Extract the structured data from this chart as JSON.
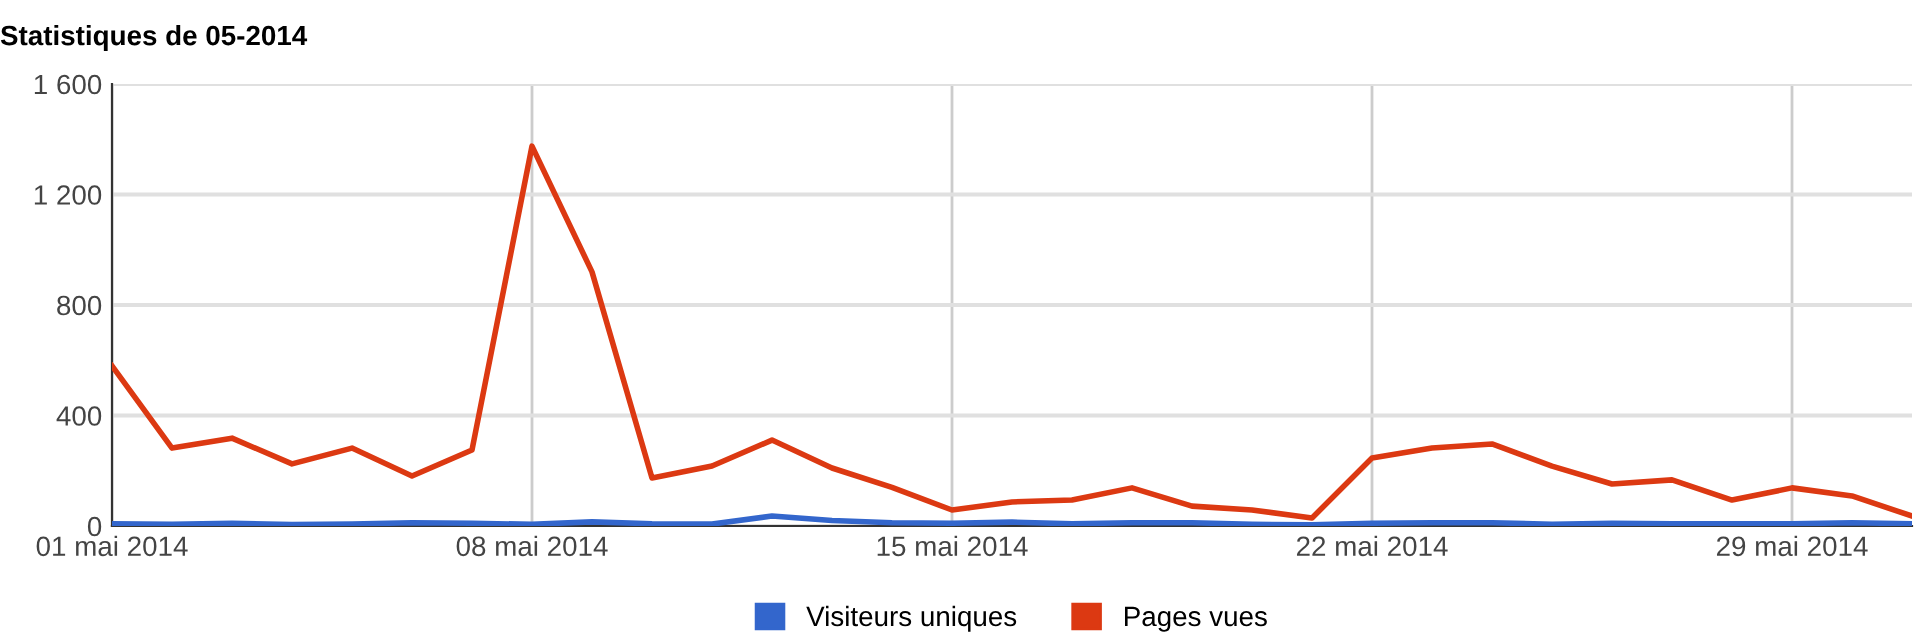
{
  "chart_data": {
    "type": "line",
    "title": "Statistiques de 05-2014",
    "x": [
      "2014-05-01",
      "2014-05-02",
      "2014-05-03",
      "2014-05-04",
      "2014-05-05",
      "2014-05-06",
      "2014-05-07",
      "2014-05-08",
      "2014-05-09",
      "2014-05-10",
      "2014-05-11",
      "2014-05-12",
      "2014-05-13",
      "2014-05-14",
      "2014-05-15",
      "2014-05-16",
      "2014-05-17",
      "2014-05-18",
      "2014-05-19",
      "2014-05-20",
      "2014-05-21",
      "2014-05-22",
      "2014-05-23",
      "2014-05-24",
      "2014-05-25",
      "2014-05-26",
      "2014-05-27",
      "2014-05-28",
      "2014-05-29",
      "2014-05-30",
      "2014-05-31"
    ],
    "series": [
      {
        "name": "Visiteurs uniques",
        "color": "#3366cc",
        "values": [
          8,
          6,
          10,
          5,
          7,
          12,
          10,
          6,
          15,
          8,
          7,
          36,
          20,
          12,
          10,
          14,
          8,
          12,
          12,
          6,
          4,
          10,
          12,
          12,
          6,
          10,
          8,
          8,
          8,
          12,
          8
        ]
      },
      {
        "name": "Pages vues",
        "color": "#dc3912",
        "values": [
          580,
          282,
          318,
          225,
          282,
          181,
          275,
          1375,
          920,
          174,
          217,
          311,
          210,
          140,
          58,
          87,
          94,
          138,
          72,
          58,
          29,
          246,
          282,
          297,
          217,
          152,
          167,
          94,
          138,
          109,
          36
        ]
      }
    ],
    "xlim": [
      "2014-05-01",
      "2014-05-31"
    ],
    "xticks": [
      {
        "value": "2014-05-01",
        "label": "01 mai 2014"
      },
      {
        "value": "2014-05-08",
        "label": "08 mai 2014"
      },
      {
        "value": "2014-05-15",
        "label": "15 mai 2014"
      },
      {
        "value": "2014-05-22",
        "label": "22 mai 2014"
      },
      {
        "value": "2014-05-29",
        "label": "29 mai 2014"
      }
    ],
    "ylim": [
      0,
      1600
    ],
    "yticks": [
      0,
      400,
      800,
      {
        "value": 1200,
        "label": "1 200"
      },
      {
        "value": 1600,
        "label": "1 600"
      }
    ],
    "grid": true,
    "legend": "bottom",
    "marker": "none",
    "line_style": "solid"
  }
}
